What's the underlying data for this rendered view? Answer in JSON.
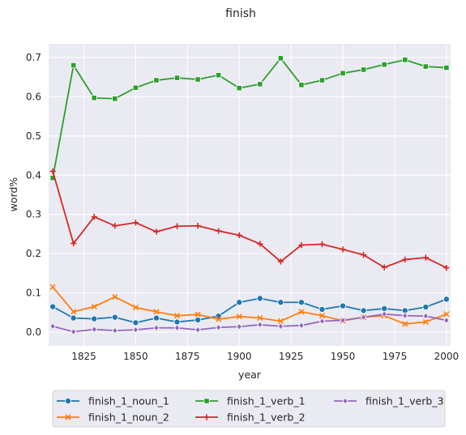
{
  "chart_data": {
    "type": "line",
    "title": "finish",
    "xlabel": "year",
    "ylabel": "word%",
    "xlim": [
      1808,
      2002
    ],
    "ylim": [
      -0.035,
      0.735
    ],
    "xticks": [
      1825,
      1850,
      1875,
      1900,
      1925,
      1950,
      1975,
      2000
    ],
    "yticks": [
      0.0,
      0.1,
      0.2,
      0.3,
      0.4,
      0.5,
      0.6,
      0.7
    ],
    "ytick_labels": [
      "0.0",
      "0.1",
      "0.2",
      "0.3",
      "0.4",
      "0.5",
      "0.6",
      "0.7"
    ],
    "grid": true,
    "legend_position": "bottom-center",
    "x": [
      1810,
      1820,
      1830,
      1840,
      1850,
      1860,
      1870,
      1880,
      1890,
      1900,
      1910,
      1920,
      1930,
      1940,
      1950,
      1960,
      1970,
      1980,
      1990,
      2000
    ],
    "series": [
      {
        "name": "finish_1_noun_1",
        "color": "#1f77b4",
        "marker": "circle",
        "values": [
          0.065,
          0.036,
          0.034,
          0.038,
          0.024,
          0.036,
          0.026,
          0.031,
          0.041,
          0.076,
          0.086,
          0.076,
          0.076,
          0.058,
          0.067,
          0.055,
          0.06,
          0.055,
          0.064,
          0.084
        ]
      },
      {
        "name": "finish_1_noun_2",
        "color": "#ff7f0e",
        "marker": "x",
        "values": [
          0.115,
          0.052,
          0.065,
          0.09,
          0.063,
          0.052,
          0.042,
          0.045,
          0.033,
          0.04,
          0.036,
          0.028,
          0.052,
          0.042,
          0.029,
          0.038,
          0.042,
          0.021,
          0.026,
          0.046
        ]
      },
      {
        "name": "finish_1_verb_1",
        "color": "#2ca02c",
        "marker": "square",
        "values": [
          0.393,
          0.68,
          0.597,
          0.595,
          0.623,
          0.642,
          0.648,
          0.644,
          0.655,
          0.622,
          0.632,
          0.698,
          0.63,
          0.642,
          0.66,
          0.669,
          0.682,
          0.694,
          0.677,
          0.674
        ]
      },
      {
        "name": "finish_1_verb_2",
        "color": "#d62728",
        "marker": "plus",
        "values": [
          0.41,
          0.226,
          0.294,
          0.271,
          0.279,
          0.256,
          0.27,
          0.271,
          0.258,
          0.247,
          0.225,
          0.18,
          0.222,
          0.224,
          0.211,
          0.197,
          0.165,
          0.185,
          0.19,
          0.164
        ]
      },
      {
        "name": "finish_1_verb_3",
        "color": "#9467bd",
        "marker": "diamond",
        "values": [
          0.015,
          0.001,
          0.007,
          0.004,
          0.006,
          0.011,
          0.011,
          0.006,
          0.012,
          0.014,
          0.019,
          0.015,
          0.017,
          0.028,
          0.03,
          0.038,
          0.046,
          0.042,
          0.041,
          0.03
        ]
      }
    ]
  }
}
